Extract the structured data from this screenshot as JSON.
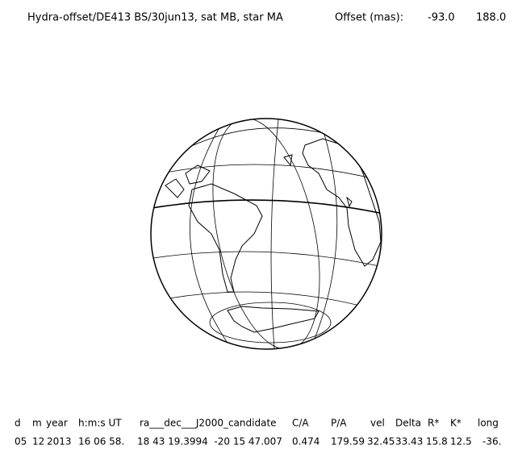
{
  "header": {
    "title": "Hydra-offset/DE413 BS/30jun13, sat MB, star MA",
    "offset_label": "Offset (mas):",
    "offset_x": "-93.0",
    "offset_y": "188.0"
  },
  "table": {
    "columns": [
      "d",
      "m",
      "year",
      "h:m:s UT",
      "ra___dec___J2000_candidate",
      "C/A",
      "P/A",
      "vel",
      "Delta",
      "R*",
      "K*",
      "long"
    ],
    "rows": [
      [
        "05",
        "12",
        "2013",
        "16 06 58.",
        "18 43 19.3994  -20 15 47.007",
        "0.474",
        "179.59",
        "32.45",
        "33.43",
        "15.8",
        "12.5",
        "-36."
      ]
    ]
  }
}
